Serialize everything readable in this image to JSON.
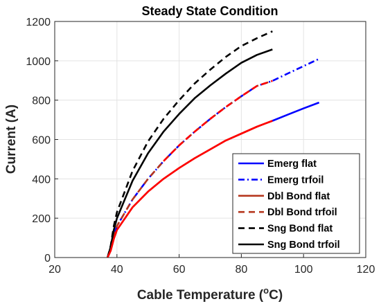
{
  "chart_data": {
    "type": "line",
    "title": "Steady State Condition",
    "xlabel_main": "Cable Temperature (",
    "xlabel_sup": "o",
    "xlabel_tail": "C)",
    "ylabel": "Current (A)",
    "xlim": [
      20,
      120
    ],
    "ylim": [
      0,
      1200
    ],
    "xticks": [
      20,
      40,
      60,
      80,
      100,
      120
    ],
    "yticks": [
      0,
      200,
      400,
      600,
      800,
      1000,
      1200
    ],
    "grid": true,
    "legend_position": "bottom-right",
    "series": [
      {
        "name": "Emerg flat",
        "color": "#0000ff",
        "dash": "solid",
        "x": [
          90,
          95,
          100,
          105
        ],
        "y": [
          695,
          727,
          758,
          788
        ]
      },
      {
        "name": "Emerg trfoil",
        "color": "#0000ff",
        "dash": "dashdot",
        "x": [
          37,
          38,
          39,
          40,
          45,
          50,
          55,
          60,
          65,
          70,
          75,
          80,
          85,
          90,
          95,
          100,
          105
        ],
        "y": [
          0,
          40,
          110,
          160,
          295,
          400,
          490,
          570,
          640,
          705,
          765,
          820,
          872,
          898,
          936,
          973,
          1010
        ]
      },
      {
        "name": "Dbl Bond flat",
        "color": "#b5361c",
        "dash": "solid",
        "x": [
          37,
          38,
          39,
          40,
          45,
          50,
          55,
          60,
          65,
          70,
          75,
          80,
          85,
          90
        ],
        "y": [
          0,
          35,
          95,
          140,
          255,
          335,
          400,
          455,
          505,
          550,
          595,
          630,
          665,
          695
        ]
      },
      {
        "name": "Dbl Bond trfoil",
        "color": "#b5361c",
        "dash": "dash",
        "x": [
          37,
          38,
          39,
          40,
          45,
          50,
          55,
          60,
          65,
          70,
          75,
          80,
          85,
          90
        ],
        "y": [
          0,
          40,
          110,
          160,
          295,
          400,
          490,
          570,
          640,
          705,
          765,
          820,
          872,
          898
        ]
      },
      {
        "name": "Sng Bond flat",
        "color": "#000000",
        "dash": "dash",
        "x": [
          37,
          38,
          39,
          40,
          45,
          50,
          55,
          60,
          65,
          70,
          75,
          80,
          85,
          90
        ],
        "y": [
          0,
          60,
          160,
          230,
          440,
          590,
          705,
          800,
          885,
          955,
          1020,
          1075,
          1115,
          1150
        ]
      },
      {
        "name": "Sng Bond trfoil",
        "color": "#000000",
        "dash": "solid",
        "x": [
          37,
          38,
          39,
          40,
          45,
          50,
          55,
          60,
          65,
          70,
          75,
          80,
          85,
          90
        ],
        "y": [
          0,
          55,
          140,
          200,
          390,
          530,
          640,
          730,
          810,
          875,
          935,
          990,
          1030,
          1058
        ]
      }
    ],
    "overlay_segments": [
      {
        "color": "#ff0000",
        "dash": "solid",
        "x": [
          37,
          38,
          39,
          40,
          45,
          50,
          55,
          60,
          65,
          70,
          75,
          80,
          85,
          90
        ],
        "y": [
          0,
          35,
          95,
          140,
          255,
          335,
          400,
          455,
          505,
          550,
          595,
          630,
          665,
          695
        ]
      },
      {
        "color": "#ff0000",
        "dash": "dash",
        "x": [
          55,
          60,
          65,
          70,
          75,
          80,
          85,
          90
        ],
        "y": [
          490,
          570,
          640,
          705,
          765,
          820,
          872,
          898
        ]
      }
    ]
  }
}
